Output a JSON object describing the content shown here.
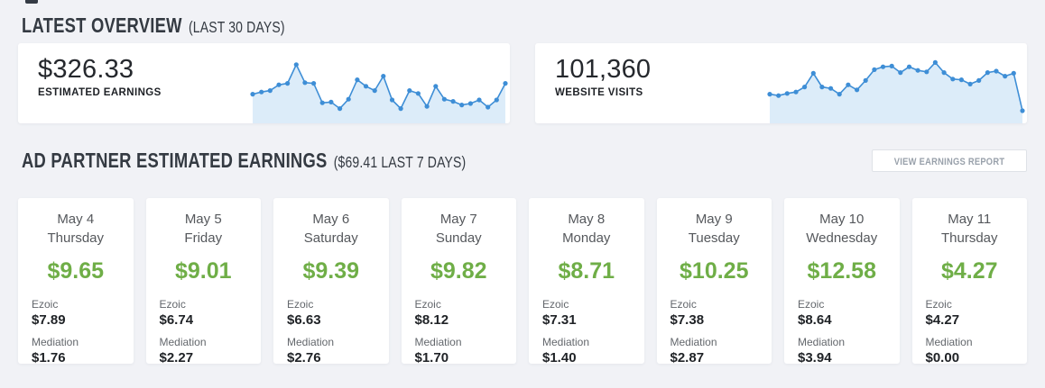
{
  "colors": {
    "accent_green": "#6fae47",
    "chart_line": "#3e8ed6",
    "chart_fill": "#dcecf9",
    "page_background": "#f1f2f6",
    "heading_text": "#343a42"
  },
  "overview": {
    "title": "LATEST OVERVIEW",
    "subtitle": "(LAST 30 DAYS)",
    "cards": [
      {
        "value": "$326.33",
        "label": "ESTIMATED EARNINGS"
      },
      {
        "value": "101,360",
        "label": "WEBSITE VISITS"
      }
    ]
  },
  "chart_data": [
    {
      "type": "area",
      "title": "Estimated earnings sparkline (last 30 days)",
      "x": "days 1-30",
      "values": [
        38,
        41,
        43,
        51,
        53,
        79,
        54,
        53,
        26,
        27,
        18,
        31,
        58,
        49,
        43,
        63,
        30,
        18,
        43,
        39,
        21,
        49,
        31,
        28,
        23,
        25,
        30,
        20,
        30,
        53
      ],
      "ylim": [
        0,
        100
      ],
      "note": "unlabeled sparkline, values are relative estimates",
      "legend": "none",
      "grid": false
    },
    {
      "type": "area",
      "title": "Website visits sparkline (last 30 days)",
      "x": "days 1-30",
      "values": [
        38,
        36,
        39,
        41,
        48,
        67,
        48,
        46,
        38,
        51,
        44,
        57,
        72,
        76,
        77,
        68,
        76,
        71,
        69,
        82,
        68,
        59,
        58,
        52,
        57,
        68,
        70,
        63,
        67,
        15
      ],
      "ylim": [
        0,
        100
      ],
      "note": "unlabeled sparkline, values are relative estimates",
      "legend": "none",
      "grid": false
    }
  ],
  "ad_partner": {
    "title": "AD PARTNER ESTIMATED EARNINGS",
    "subtitle": "($69.41 LAST 7 DAYS)",
    "report_button": "VIEW EARNINGS REPORT",
    "labels": {
      "ezoic": "Ezoic",
      "mediation": "Mediation"
    },
    "day_cards": [
      {
        "date": "May 4",
        "weekday": "Thursday",
        "total": "$9.65",
        "ezoic": "$7.89",
        "mediation": "$1.76"
      },
      {
        "date": "May 5",
        "weekday": "Friday",
        "total": "$9.01",
        "ezoic": "$6.74",
        "mediation": "$2.27"
      },
      {
        "date": "May 6",
        "weekday": "Saturday",
        "total": "$9.39",
        "ezoic": "$6.63",
        "mediation": "$2.76"
      },
      {
        "date": "May 7",
        "weekday": "Sunday",
        "total": "$9.82",
        "ezoic": "$8.12",
        "mediation": "$1.70"
      },
      {
        "date": "May 8",
        "weekday": "Monday",
        "total": "$8.71",
        "ezoic": "$7.31",
        "mediation": "$1.40"
      },
      {
        "date": "May 9",
        "weekday": "Tuesday",
        "total": "$10.25",
        "ezoic": "$7.38",
        "mediation": "$2.87"
      },
      {
        "date": "May 10",
        "weekday": "Wednesday",
        "total": "$12.58",
        "ezoic": "$8.64",
        "mediation": "$3.94"
      },
      {
        "date": "May 11",
        "weekday": "Thursday",
        "total": "$4.27",
        "ezoic": "$4.27",
        "mediation": "$0.00"
      }
    ]
  }
}
